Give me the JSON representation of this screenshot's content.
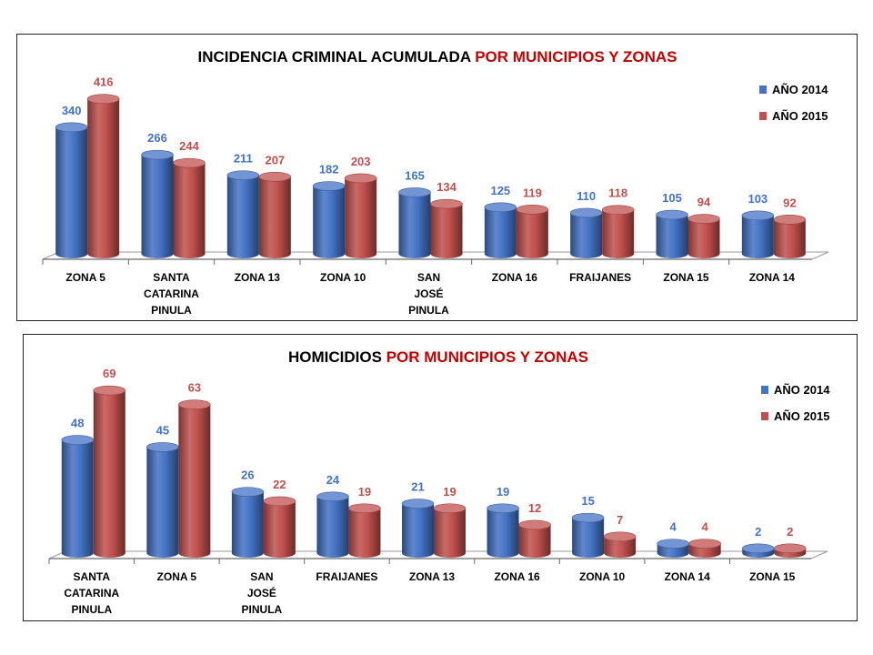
{
  "colors": {
    "series_2014": "#4472C4",
    "series_2015": "#C0504D",
    "title_black": "#000000",
    "title_red": "#C00000"
  },
  "chart_data": [
    {
      "type": "bar",
      "title_black": "INCIDENCIA CRIMINAL ACUMULADA",
      "title_red": "POR MUNICIPIOS Y ZONAS",
      "categories": [
        "ZONA 5",
        "SANTA CATARINA PINULA",
        "ZONA 13",
        "ZONA 10",
        "SAN JOSÉ PINULA",
        "ZONA 16",
        "FRAIJANES",
        "ZONA 15",
        "ZONA 14"
      ],
      "series": [
        {
          "name": "AÑO 2014",
          "values": [
            340,
            266,
            211,
            182,
            165,
            125,
            110,
            105,
            103
          ]
        },
        {
          "name": "AÑO 2015",
          "values": [
            416,
            244,
            207,
            203,
            134,
            119,
            118,
            94,
            92
          ]
        }
      ],
      "ylim": [
        0,
        430
      ],
      "legend": "top-right",
      "grid": false
    },
    {
      "type": "bar",
      "title_black": "HOMICIDIOS",
      "title_red": "POR MUNICIPIOS Y ZONAS",
      "categories": [
        "SANTA CATARINA PINULA",
        "ZONA 5",
        "SAN JOSÉ PINULA",
        "FRAIJANES",
        "ZONA 13",
        "ZONA 16",
        "ZONA 10",
        "ZONA 14",
        "ZONA 15"
      ],
      "series": [
        {
          "name": "AÑO 2014",
          "values": [
            48,
            45,
            26,
            24,
            21,
            19,
            15,
            4,
            2
          ]
        },
        {
          "name": "AÑO 2015",
          "values": [
            69,
            63,
            22,
            19,
            19,
            12,
            7,
            4,
            2
          ]
        }
      ],
      "ylim": [
        0,
        71
      ],
      "legend": "top-right",
      "grid": false
    }
  ]
}
